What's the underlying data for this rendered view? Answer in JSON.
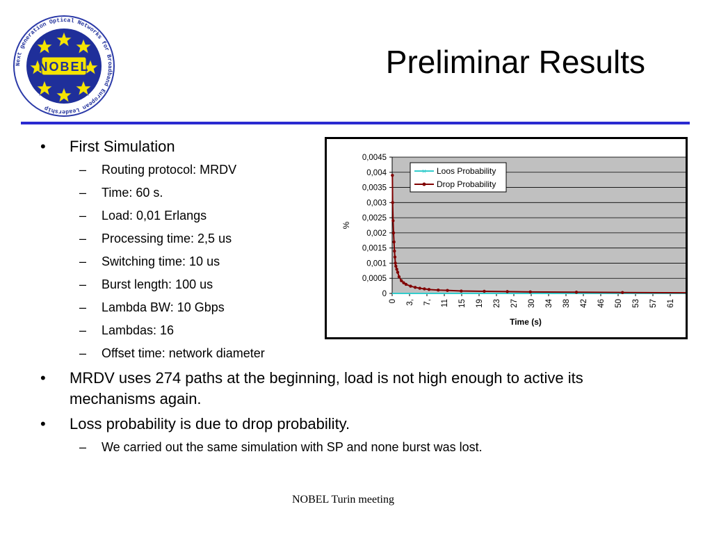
{
  "slide": {
    "title": "Preliminar Results",
    "footer": "NOBEL Turin  meeting"
  },
  "logo": {
    "wordmark": "NOBEL",
    "ring_text": "Next generation Optical Networks for Broadband European Leadership"
  },
  "bullets": [
    {
      "text": "First Simulation",
      "sub": [
        "Routing protocol: MRDV",
        "Time: 60 s.",
        "Load: 0,01 Erlangs",
        "Processing time: 2,5 us",
        "Switching time: 10 us",
        "Burst length: 100 us",
        "Lambda BW: 10 Gbps",
        "Lambdas: 16",
        "Offset time: network diameter"
      ]
    },
    {
      "text": "MRDV uses 274 paths at the beginning, load is not high enough to active its mechanisms again.",
      "sub": []
    },
    {
      "text": "Loss probability is due to drop probability.",
      "sub": [
        "We carried out the same simulation with SP and none burst was lost."
      ]
    }
  ],
  "colors": {
    "rule": "#2a2ad0",
    "plot_bg": "#c0c0c0",
    "drop_series": "#800000",
    "loss_series": "#33cccc"
  },
  "chart_data": {
    "type": "line",
    "xlabel": "Time (s)",
    "ylabel": "%",
    "ylim": [
      0,
      0.0045
    ],
    "yticks": [
      "0",
      "0,0005",
      "0,001",
      "0,0015",
      "0,002",
      "0,0025",
      "0,003",
      "0,0035",
      "0,004",
      "0,0045"
    ],
    "xticks": [
      "0",
      "3,",
      "7,",
      "11",
      "15",
      "19",
      "23",
      "27",
      "30",
      "34",
      "38",
      "42",
      "46",
      "50",
      "53",
      "57",
      "61"
    ],
    "xlim": [
      0,
      64
    ],
    "legend_position": "top",
    "grid": true,
    "series": [
      {
        "name": "Loos Probability",
        "x": [
          0,
          64
        ],
        "y": [
          0,
          0
        ]
      },
      {
        "name": "Drop Probability",
        "x": [
          0.05,
          0.1,
          0.2,
          0.3,
          0.4,
          0.5,
          0.6,
          0.7,
          0.8,
          1.0,
          1.2,
          1.5,
          2,
          2.5,
          3,
          4,
          5,
          6,
          7,
          8,
          10,
          12,
          15,
          20,
          25,
          30,
          40,
          50,
          64
        ],
        "y": [
          0.0039,
          0.003,
          0.0024,
          0.002,
          0.0017,
          0.0014,
          0.0012,
          0.001,
          0.0009,
          0.0008,
          0.0007,
          0.00055,
          0.00042,
          0.00035,
          0.0003,
          0.00024,
          0.0002,
          0.00017,
          0.00015,
          0.00013,
          0.00011,
          0.0001,
          8e-05,
          7e-05,
          6e-05,
          5e-05,
          4e-05,
          3e-05,
          2e-05
        ]
      }
    ]
  }
}
